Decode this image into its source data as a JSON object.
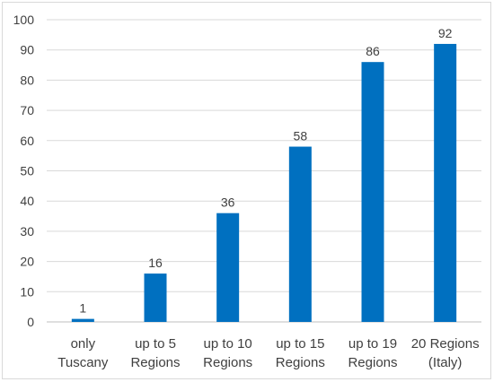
{
  "chart_data": {
    "type": "bar",
    "title": "",
    "xlabel": "",
    "ylabel": "",
    "categories": [
      [
        "only",
        "Tuscany"
      ],
      [
        "up to 5",
        "Regions"
      ],
      [
        "up to 10",
        "Regions"
      ],
      [
        "up to 15",
        "Regions"
      ],
      [
        "up to 19",
        "Regions"
      ],
      [
        "20 Regions",
        "(Italy)"
      ]
    ],
    "values": [
      1,
      16,
      36,
      58,
      86,
      92
    ],
    "data_labels": [
      "1",
      "16",
      "36",
      "58",
      "86",
      "92"
    ],
    "ylim": [
      0,
      100
    ],
    "yticks": [
      0,
      10,
      20,
      30,
      40,
      50,
      60,
      70,
      80,
      90,
      100
    ],
    "ytick_labels": [
      "0",
      "10",
      "20",
      "30",
      "40",
      "50",
      "60",
      "70",
      "80",
      "90",
      "100"
    ],
    "grid": true,
    "legend": "none",
    "bar_color": "#0070C0"
  }
}
